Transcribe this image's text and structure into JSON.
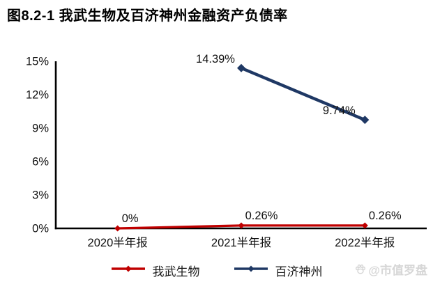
{
  "title": "图8.2-1 我武生物及百济神州金融资产负债率",
  "watermark": {
    "icon": "baidu-paw-icon",
    "text": "@市值罗盘"
  },
  "colors": {
    "series_red": "#c00000",
    "series_navy": "#1f3864",
    "axis": "#000000",
    "label_text": "#111111",
    "watermark_grey": "#d6d6d6",
    "background": "#ffffff"
  },
  "chart_data": {
    "type": "line",
    "title": "图8.2-1 我武生物及百济神州金融资产负债率",
    "categories": [
      "2020半年报",
      "2021半年报",
      "2022半年报"
    ],
    "series": [
      {
        "name": "我武生物",
        "color": "#c00000",
        "values": [
          0,
          0.26,
          0.26
        ],
        "point_labels": [
          "0%",
          "0.26%",
          "0.26%"
        ],
        "label_side": "right-above",
        "marker": "diamond",
        "line_width": 3.2
      },
      {
        "name": "百济神州",
        "color": "#1f3864",
        "values": [
          null,
          14.39,
          9.74
        ],
        "point_labels": [
          null,
          "14.39%",
          "9.74%"
        ],
        "label_side": "left-above",
        "marker": "diamond",
        "line_width": 4.4
      }
    ],
    "xlabel": "",
    "ylabel": "",
    "ylim": [
      0,
      15
    ],
    "yticks": [
      0,
      3,
      6,
      9,
      12,
      15
    ],
    "ytick_format": "{v}%",
    "grid": false,
    "legend_position": "bottom"
  }
}
